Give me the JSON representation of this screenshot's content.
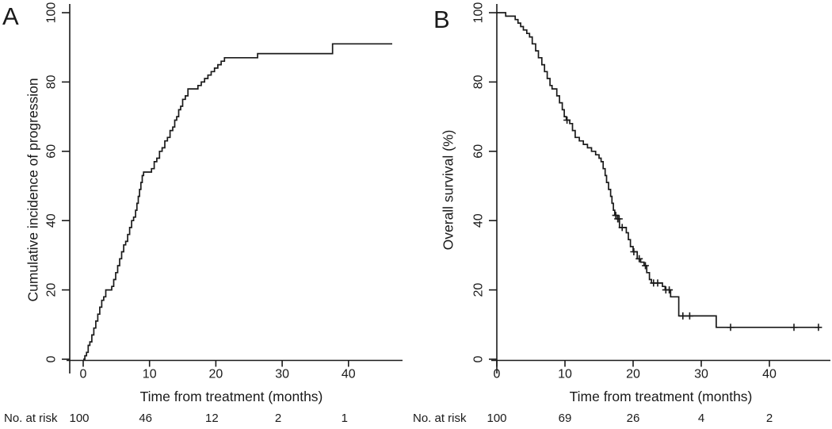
{
  "figure": {
    "background": "#ffffff",
    "line_color": "#1a1a1a"
  },
  "chart_data": [
    {
      "panel": "A",
      "type": "line",
      "subtype": "step-function-cumulative-incidence",
      "title": "",
      "xlabel": "Time from treatment (months)",
      "ylabel": "Cumulative incidence of progression",
      "xlim": [
        0,
        47
      ],
      "ylim": [
        0,
        100
      ],
      "x_ticks": [
        0,
        10,
        20,
        30,
        40
      ],
      "y_ticks": [
        0,
        20,
        40,
        60,
        80,
        100
      ],
      "grid": false,
      "legend": "none",
      "curve_end_x": 46.6,
      "steps": [
        [
          0,
          0
        ],
        [
          0.25,
          1
        ],
        [
          0.5,
          2
        ],
        [
          0.75,
          4
        ],
        [
          1,
          5
        ],
        [
          1.3,
          7
        ],
        [
          1.6,
          9
        ],
        [
          1.9,
          11
        ],
        [
          2.2,
          13
        ],
        [
          2.5,
          15
        ],
        [
          2.8,
          17
        ],
        [
          3.1,
          18
        ],
        [
          3.4,
          20
        ],
        [
          4.3,
          21
        ],
        [
          4.6,
          23
        ],
        [
          4.9,
          25
        ],
        [
          5.2,
          27
        ],
        [
          5.5,
          29
        ],
        [
          5.8,
          31
        ],
        [
          6.1,
          33
        ],
        [
          6.4,
          34
        ],
        [
          6.7,
          36
        ],
        [
          7,
          38
        ],
        [
          7.3,
          40
        ],
        [
          7.6,
          41
        ],
        [
          7.9,
          43
        ],
        [
          8.1,
          45
        ],
        [
          8.3,
          47
        ],
        [
          8.5,
          49
        ],
        [
          8.7,
          51
        ],
        [
          8.9,
          53
        ],
        [
          9.1,
          54
        ],
        [
          10.3,
          55
        ],
        [
          10.7,
          57
        ],
        [
          11.1,
          58
        ],
        [
          11.5,
          60
        ],
        [
          11.9,
          61
        ],
        [
          12.3,
          63
        ],
        [
          12.7,
          64
        ],
        [
          13.1,
          66
        ],
        [
          13.5,
          67
        ],
        [
          13.8,
          69
        ],
        [
          14.1,
          70
        ],
        [
          14.4,
          72
        ],
        [
          14.7,
          73
        ],
        [
          15,
          75
        ],
        [
          15.4,
          76
        ],
        [
          15.8,
          78
        ],
        [
          17.3,
          79
        ],
        [
          17.8,
          80
        ],
        [
          18.3,
          81
        ],
        [
          18.8,
          82
        ],
        [
          19.3,
          83
        ],
        [
          19.8,
          84
        ],
        [
          20.3,
          85
        ],
        [
          20.8,
          86
        ],
        [
          21.3,
          87
        ],
        [
          26.3,
          88.2
        ],
        [
          37.6,
          91
        ]
      ],
      "censor_marks": [],
      "risk_table": {
        "label": "No. at risk",
        "times": [
          0,
          10,
          20,
          30,
          40
        ],
        "values": [
          "100",
          "46",
          "12",
          "2",
          "1"
        ]
      }
    },
    {
      "panel": "B",
      "type": "line",
      "subtype": "step-function-kaplan-meier",
      "title": "",
      "xlabel": "Time from treatment (months)",
      "ylabel": "Overall survival (%)",
      "xlim": [
        0,
        47
      ],
      "ylim": [
        0,
        100
      ],
      "x_ticks": [
        0,
        10,
        20,
        30,
        40
      ],
      "y_ticks": [
        0,
        20,
        40,
        60,
        80,
        100
      ],
      "grid": false,
      "legend": "none",
      "curve_end_x": 47.3,
      "steps": [
        [
          0,
          100
        ],
        [
          1.3,
          99
        ],
        [
          2.7,
          98
        ],
        [
          3.1,
          97
        ],
        [
          3.5,
          96
        ],
        [
          3.9,
          95
        ],
        [
          4.4,
          94
        ],
        [
          4.8,
          93
        ],
        [
          5.2,
          91
        ],
        [
          5.7,
          89
        ],
        [
          6.1,
          87
        ],
        [
          6.6,
          85
        ],
        [
          7,
          83
        ],
        [
          7.4,
          81
        ],
        [
          7.8,
          79
        ],
        [
          8.1,
          78
        ],
        [
          8.8,
          76
        ],
        [
          9.2,
          74
        ],
        [
          9.6,
          72
        ],
        [
          9.9,
          70
        ],
        [
          10.2,
          69
        ],
        [
          10.7,
          68
        ],
        [
          11.1,
          66
        ],
        [
          11.5,
          64
        ],
        [
          12.1,
          63
        ],
        [
          12.7,
          62
        ],
        [
          13.3,
          61
        ],
        [
          13.9,
          60
        ],
        [
          14.5,
          59
        ],
        [
          15,
          58
        ],
        [
          15.3,
          57
        ],
        [
          15.6,
          55
        ],
        [
          15.9,
          53
        ],
        [
          16.1,
          51
        ],
        [
          16.4,
          49
        ],
        [
          16.7,
          47
        ],
        [
          16.9,
          45
        ],
        [
          17.1,
          43
        ],
        [
          17.3,
          41.5
        ],
        [
          17.7,
          40.5
        ],
        [
          18,
          38
        ],
        [
          19,
          36.5
        ],
        [
          19.3,
          34.5
        ],
        [
          19.6,
          32.5
        ],
        [
          20,
          31
        ],
        [
          20.6,
          29
        ],
        [
          21.1,
          28
        ],
        [
          21.6,
          27
        ],
        [
          22,
          25
        ],
        [
          22.4,
          23
        ],
        [
          22.7,
          22
        ],
        [
          24.3,
          21
        ],
        [
          24.7,
          20
        ],
        [
          25.5,
          18
        ],
        [
          26.7,
          12.5
        ],
        [
          32.2,
          9.2
        ]
      ],
      "censor_marks": [
        [
          10.3,
          69
        ],
        [
          17.45,
          41.5
        ],
        [
          17.75,
          40.5
        ],
        [
          17.95,
          40.5
        ],
        [
          18.4,
          38
        ],
        [
          20.1,
          31
        ],
        [
          20.9,
          29
        ],
        [
          21.8,
          27
        ],
        [
          23,
          22
        ],
        [
          23.6,
          22
        ],
        [
          24.8,
          20
        ],
        [
          25.3,
          20
        ],
        [
          27.3,
          12.5
        ],
        [
          28.3,
          12.5
        ],
        [
          34.3,
          9.2
        ],
        [
          43.6,
          9.2
        ],
        [
          47.2,
          9.2
        ]
      ],
      "risk_table": {
        "label": "No. at risk",
        "times": [
          0,
          10,
          20,
          30,
          40
        ],
        "values": [
          "100",
          "69",
          "26",
          "4",
          "2"
        ]
      }
    }
  ]
}
